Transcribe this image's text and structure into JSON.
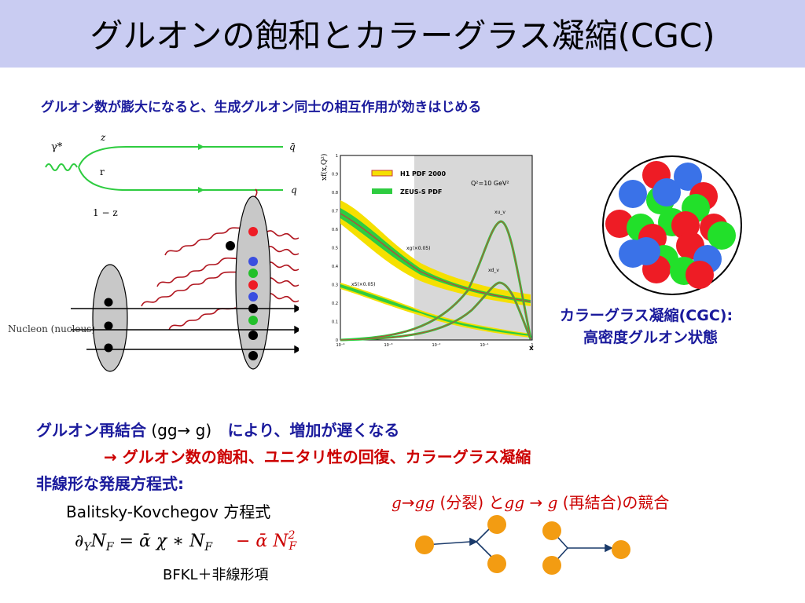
{
  "slide": {
    "title": "グルオンの飽和とカラーグラス凝縮(CGC)",
    "intro": "グルオン数が膨大になると、生成グルオン同士の相互作用が効きはじめる"
  },
  "left_figure": {
    "photon": "γ*",
    "z": "z",
    "one_minus_z": "1 − z",
    "r": "r",
    "qbar": "q̄",
    "q": "q",
    "nucleon": "Nucleon (nucleus)"
  },
  "chart_data": {
    "type": "line",
    "ylabel": "xf(x,Q²)",
    "xlabel": "x",
    "legend": [
      "H1 PDF 2000",
      "ZEUS-S PDF"
    ],
    "annotation": "Q²=10 GeV²",
    "curve_labels": [
      "xu_v",
      "xd_v",
      "xg(×0.05)",
      "xS(×0.05)"
    ],
    "x_ticks": [
      "10⁻⁴",
      "10⁻³",
      "10⁻²",
      "10⁻¹",
      "1"
    ],
    "y_ticks": [
      "0",
      "0.1",
      "0.2",
      "0.3",
      "0.4",
      "0.5",
      "0.6",
      "0.7",
      "0.8",
      "0.9",
      "1"
    ],
    "ylim": [
      0,
      1
    ],
    "xscale": "log",
    "colors": {
      "h1": "#c83a3a",
      "zeus": "#2ecc40",
      "band": "#f5e000"
    }
  },
  "cgc": {
    "caption_line1": "カラーグラス凝縮(CGC):",
    "caption_line2": "高密度グルオン状態",
    "colors": {
      "red": "#ee1c25",
      "green": "#22e02a",
      "blue": "#3a72e8"
    }
  },
  "recombination": {
    "label": "グルオン再結合",
    "formula": "(gg→ g)",
    "tail": "により、増加が遅くなる"
  },
  "saturation_line": "→ グルオン数の飽和、ユニタリ性の回復、カラーグラス凝縮",
  "nonlinear": {
    "heading": "非線形な発展方程式:",
    "equation_name": "Balitsky-Kovchegov 方程式",
    "equation": "∂_Y N_F = ᾱ χ * N_F − ᾱ N_F²",
    "bfkl": "BFKL＋非線形項"
  },
  "competition": {
    "g1": "g",
    "arrow1": "→",
    "gg1": "gg",
    "split": " (分裂) と",
    "gg2": "gg",
    "arrow2": " → ",
    "g2": "g",
    "recomb": " (再結合)の競合",
    "dot_color": "#f39c12"
  }
}
